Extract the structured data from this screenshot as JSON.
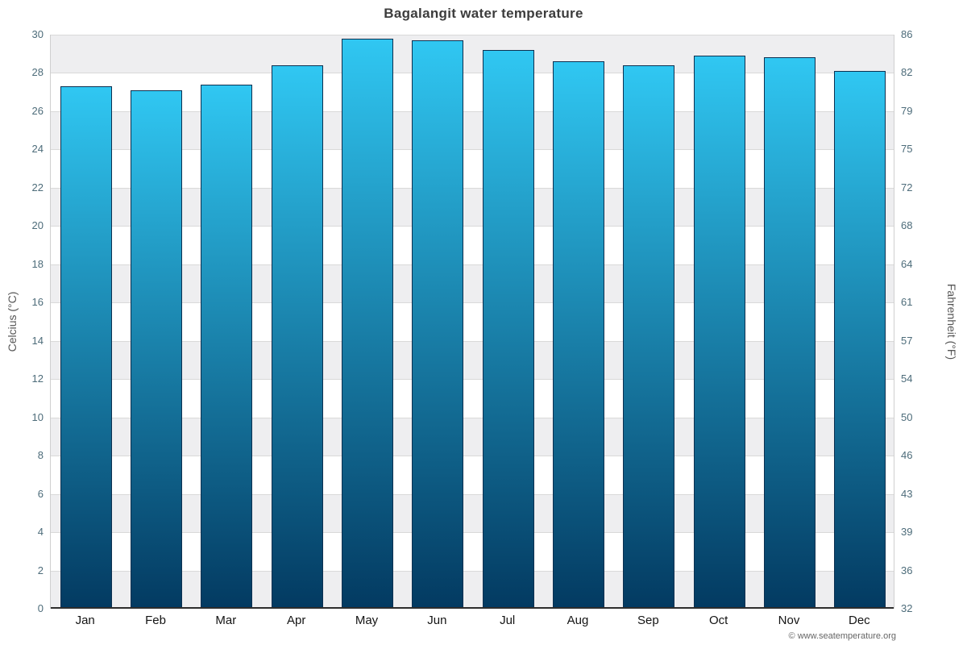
{
  "chart_data": {
    "type": "bar",
    "title": "Bagalangit water temperature",
    "categories": [
      "Jan",
      "Feb",
      "Mar",
      "Apr",
      "May",
      "Jun",
      "Jul",
      "Aug",
      "Sep",
      "Oct",
      "Nov",
      "Dec"
    ],
    "values": [
      27.3,
      27.1,
      27.4,
      28.4,
      29.8,
      29.7,
      29.2,
      28.6,
      28.4,
      28.9,
      28.8,
      28.1
    ],
    "ylabel_left": "Celcius (°C)",
    "ylabel_right": "Fahrenheit (°F)",
    "ylim": [
      0,
      30
    ],
    "yticks_celsius": [
      0,
      2,
      4,
      6,
      8,
      10,
      12,
      14,
      16,
      18,
      20,
      22,
      24,
      26,
      28,
      30
    ],
    "yticks_fahrenheit": [
      32,
      36,
      39,
      43,
      46,
      50,
      54,
      57,
      61,
      64,
      68,
      72,
      75,
      79,
      82,
      86
    ],
    "grid": true,
    "legend": "none",
    "bar_gradient_top": "#30c7f2",
    "bar_gradient_bottom": "#033a61",
    "bar_border_color": "#0d3050",
    "band_color": "#eeeef0",
    "grid_color": "#d9d9d9",
    "axis_color": "#2d2d2d"
  },
  "footer": {
    "copyright": "© www.seatemperature.org"
  }
}
